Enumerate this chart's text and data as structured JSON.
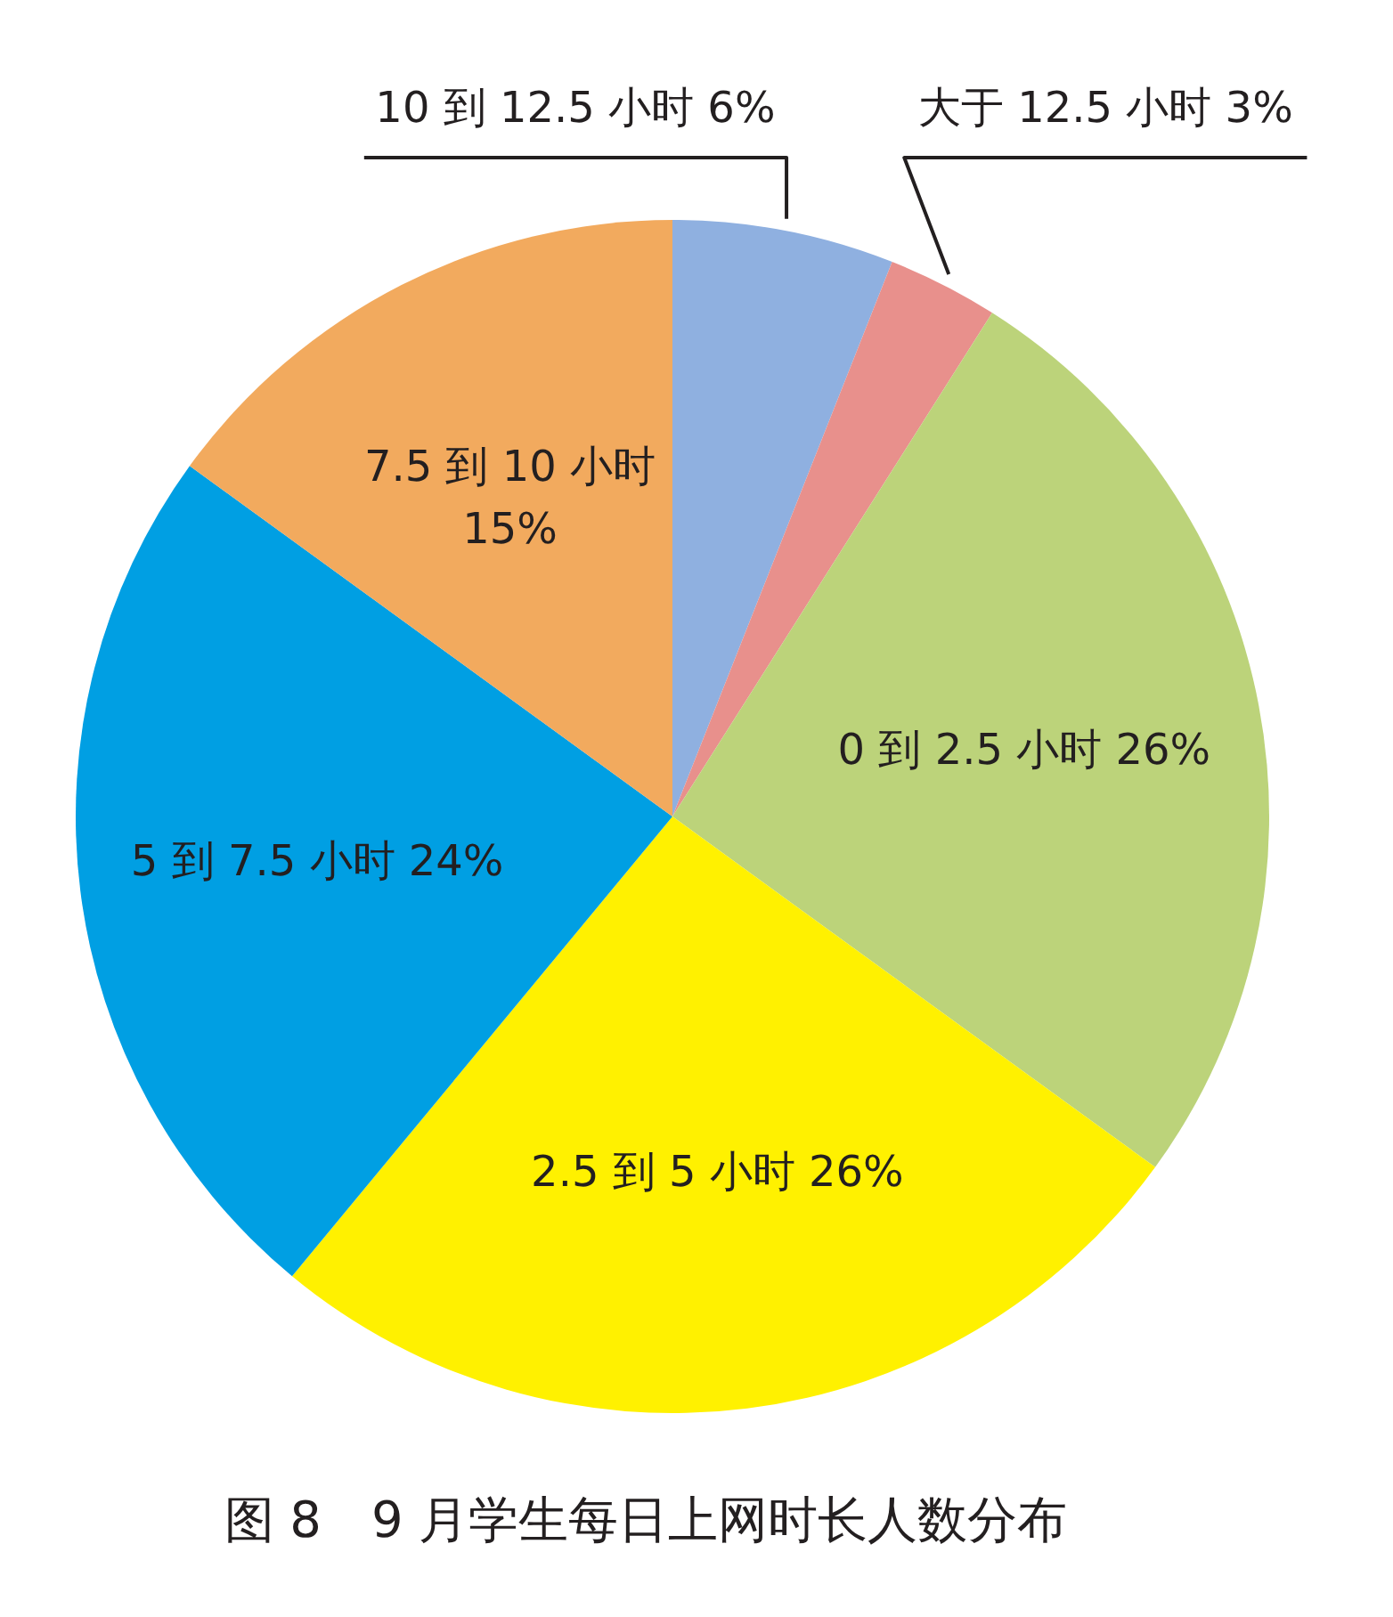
{
  "chart_data": {
    "type": "pie",
    "title": "图 8　9 月学生每日上网时长人数分布",
    "categories": [
      "10 到 12.5 小时",
      "大于 12.5 小时",
      "0 到 2.5 小时",
      "2.5 到 5 小时",
      "5 到 7.5 小时",
      "7.5 到 10 小时"
    ],
    "values": [
      6,
      3,
      26,
      26,
      24,
      15
    ],
    "value_labels": [
      "6%",
      "3%",
      "26%",
      "26%",
      "24%",
      "15%"
    ],
    "colors": [
      "#8fb0e0",
      "#e8908c",
      "#bcd37a",
      "#fff100",
      "#009fe3",
      "#f2aa5e"
    ]
  }
}
